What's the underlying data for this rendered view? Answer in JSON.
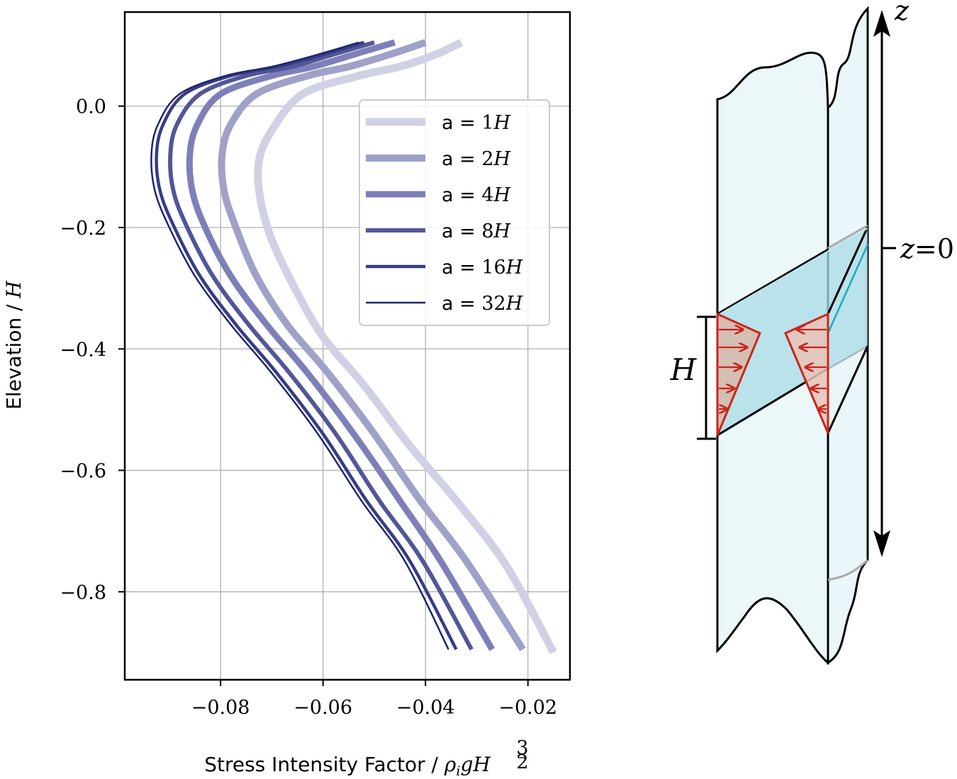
{
  "chart_data": {
    "type": "line",
    "xlabel_text": "Stress Intensity Factor / ",
    "xlabel_math": "ρ",
    "xlabel_sub": "i",
    "xlabel_math2": "gH",
    "xlabel_exp_num": "3",
    "xlabel_exp_den": "2",
    "ylabel_text": "Elevation / ",
    "ylabel_math": "H",
    "xlim": [
      -0.0987,
      -0.0118
    ],
    "ylim": [
      -0.945,
      0.155
    ],
    "xticks": [
      -0.08,
      -0.06,
      -0.04,
      -0.02
    ],
    "xtick_labels": [
      "−0.08",
      "−0.06",
      "−0.04",
      "−0.02"
    ],
    "yticks": [
      0.0,
      -0.2,
      -0.4,
      -0.6,
      -0.8
    ],
    "ytick_labels": [
      "0.0",
      "−0.2",
      "−0.4",
      "−0.6",
      "−0.8"
    ],
    "grid": true,
    "legend_placement": "upper-right",
    "series": [
      {
        "name": "a = 1H",
        "prefix": "a = ",
        "num": "1",
        "unit": "H",
        "color": "#d0d1e5",
        "width": 11,
        "x": [
          -0.033,
          -0.038,
          -0.045,
          -0.053,
          -0.064,
          -0.07,
          -0.0725,
          -0.0723,
          -0.07,
          -0.0655,
          -0.06,
          -0.052,
          -0.043,
          -0.033,
          -0.024,
          -0.015
        ],
        "y": [
          0.105,
          0.085,
          0.065,
          0.05,
          0.02,
          -0.04,
          -0.09,
          -0.15,
          -0.22,
          -0.3,
          -0.38,
          -0.46,
          -0.56,
          -0.66,
          -0.76,
          -0.9
        ]
      },
      {
        "name": "a = 2H",
        "prefix": "a = ",
        "num": "2",
        "unit": "H",
        "color": "#9fa1c9",
        "width": 10,
        "x": [
          -0.04,
          -0.047,
          -0.055,
          -0.063,
          -0.073,
          -0.078,
          -0.0797,
          -0.0793,
          -0.077,
          -0.073,
          -0.067,
          -0.059,
          -0.05,
          -0.041,
          -0.032,
          -0.021
        ],
        "y": [
          0.105,
          0.085,
          0.065,
          0.05,
          0.02,
          -0.03,
          -0.08,
          -0.14,
          -0.2,
          -0.28,
          -0.36,
          -0.44,
          -0.54,
          -0.65,
          -0.75,
          -0.895
        ]
      },
      {
        "name": "a = 4H",
        "prefix": "a = ",
        "num": "4",
        "unit": "H",
        "color": "#7d80b8",
        "width": 9,
        "x": [
          -0.046,
          -0.054,
          -0.062,
          -0.07,
          -0.08,
          -0.0845,
          -0.086,
          -0.0855,
          -0.083,
          -0.078,
          -0.071,
          -0.063,
          -0.054,
          -0.045,
          -0.037,
          -0.027
        ],
        "y": [
          0.105,
          0.085,
          0.065,
          0.05,
          0.02,
          -0.03,
          -0.08,
          -0.14,
          -0.2,
          -0.28,
          -0.36,
          -0.44,
          -0.54,
          -0.65,
          -0.75,
          -0.895
        ]
      },
      {
        "name": "a = 8H",
        "prefix": "a = ",
        "num": "8",
        "unit": "H",
        "color": "#525699",
        "width": 6,
        "x": [
          -0.05,
          -0.058,
          -0.066,
          -0.075,
          -0.084,
          -0.0885,
          -0.0898,
          -0.0892,
          -0.0865,
          -0.0815,
          -0.0745,
          -0.0665,
          -0.0575,
          -0.049,
          -0.0405,
          -0.031
        ],
        "y": [
          0.105,
          0.085,
          0.065,
          0.05,
          0.02,
          -0.03,
          -0.08,
          -0.14,
          -0.2,
          -0.28,
          -0.36,
          -0.44,
          -0.54,
          -0.65,
          -0.75,
          -0.895
        ]
      },
      {
        "name": "a = 16H",
        "prefix": "a = ",
        "num": "16",
        "unit": "H",
        "color": "#363c84",
        "width": 4.5,
        "x": [
          -0.052,
          -0.06,
          -0.069,
          -0.078,
          -0.087,
          -0.0912,
          -0.0925,
          -0.0918,
          -0.089,
          -0.084,
          -0.077,
          -0.069,
          -0.06,
          -0.0515,
          -0.043,
          -0.034
        ],
        "y": [
          0.105,
          0.085,
          0.065,
          0.05,
          0.02,
          -0.03,
          -0.08,
          -0.14,
          -0.2,
          -0.28,
          -0.36,
          -0.44,
          -0.54,
          -0.65,
          -0.75,
          -0.895
        ]
      },
      {
        "name": "a = 32H",
        "prefix": "a = ",
        "num": "32",
        "unit": "H",
        "color": "#1f2470",
        "width": 2.5,
        "x": [
          -0.053,
          -0.061,
          -0.07,
          -0.079,
          -0.088,
          -0.0922,
          -0.0935,
          -0.0928,
          -0.09,
          -0.085,
          -0.078,
          -0.07,
          -0.061,
          -0.0525,
          -0.044,
          -0.0355
        ],
        "y": [
          0.105,
          0.085,
          0.065,
          0.05,
          0.02,
          -0.03,
          -0.08,
          -0.14,
          -0.2,
          -0.28,
          -0.36,
          -0.44,
          -0.54,
          -0.65,
          -0.75,
          -0.895
        ]
      }
    ]
  },
  "diagram": {
    "z_axis_label": "z",
    "z_zero_var": "z",
    "z_zero_rest": "=0",
    "thickness_label": "H",
    "plate_fill": "#eaf6f9",
    "crack_fill": "#a9dbe6",
    "load_fill": "#e5b9ad",
    "load_stroke": "#c8261c"
  }
}
